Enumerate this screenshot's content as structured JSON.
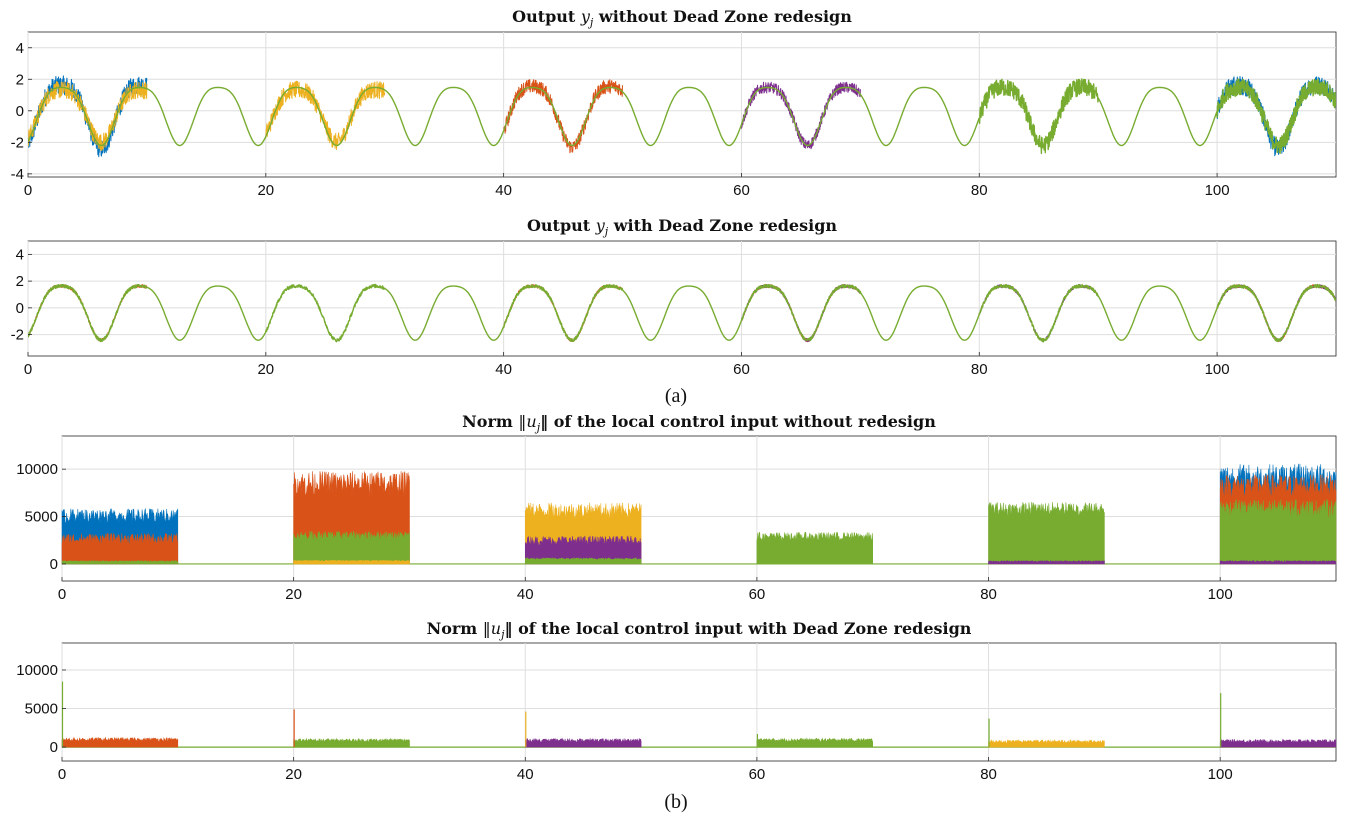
{
  "figure": {
    "panel_labels": [
      "(a)",
      "(b)"
    ]
  },
  "colors": {
    "blue": "#0072BD",
    "orange": "#D95319",
    "yellow": "#EDB120",
    "purple": "#7E2F8E",
    "green": "#77AC30"
  },
  "chart_data": [
    {
      "type": "line",
      "title_parts": [
        "Output ",
        "y",
        "j",
        " without Dead Zone redesign"
      ],
      "xlim": [
        0,
        110
      ],
      "ylim": [
        -4.2,
        5
      ],
      "xticks": [
        0,
        20,
        40,
        60,
        80,
        100
      ],
      "yticks": [
        -4,
        -2,
        0,
        2,
        4
      ],
      "grid": true,
      "series": [
        {
          "color": "blue",
          "windows": [
            [
              0,
              10
            ],
            [
              100,
              110
            ]
          ],
          "amplitude": 2.2,
          "noise": 0.6
        },
        {
          "color": "yellow",
          "windows": [
            [
              0,
              10
            ],
            [
              20,
              30
            ]
          ],
          "amplitude": 1.8,
          "noise": 0.55
        },
        {
          "color": "orange",
          "windows": [
            [
              40,
              50
            ]
          ],
          "amplitude": 2.1,
          "noise": 0.45
        },
        {
          "color": "purple",
          "windows": [
            [
              60,
              70
            ]
          ],
          "amplitude": 2.0,
          "noise": 0.35
        },
        {
          "color": "green",
          "windows": [
            [
              0,
              110
            ]
          ],
          "amplitude": 2.0,
          "noise": 0.0,
          "noisy_windows": [
            [
              80,
              90
            ],
            [
              100,
              110
            ]
          ],
          "noisy_amount": 0.55
        }
      ]
    },
    {
      "type": "line",
      "title_parts": [
        "Output ",
        "y",
        "j",
        " with Dead Zone redesign"
      ],
      "xlim": [
        0,
        110
      ],
      "ylim": [
        -3.6,
        5
      ],
      "xticks": [
        0,
        20,
        40,
        60,
        80,
        100
      ],
      "yticks": [
        -2,
        0,
        2,
        4
      ],
      "grid": true,
      "series": [
        {
          "color": "orange",
          "windows": [
            [
              0,
              10
            ],
            [
              40,
              50
            ],
            [
              60,
              70
            ],
            [
              100,
              110
            ]
          ],
          "amplitude": 2.2,
          "noise": 0.12
        },
        {
          "color": "purple",
          "windows": [
            [
              60,
              70
            ],
            [
              80,
              90
            ],
            [
              100,
              110
            ]
          ],
          "amplitude": 2.2,
          "noise": 0.12
        },
        {
          "color": "green",
          "windows": [
            [
              0,
              110
            ]
          ],
          "amplitude": 2.2,
          "noise": 0.0,
          "noisy_windows": [
            [
              0,
              10
            ],
            [
              20,
              30
            ],
            [
              40,
              50
            ],
            [
              60,
              70
            ],
            [
              80,
              90
            ],
            [
              100,
              110
            ]
          ],
          "noisy_amount": 0.12
        }
      ]
    },
    {
      "type": "area",
      "title_parts": [
        "Norm ",
        "‖u",
        "j",
        "‖ of the local control input without redesign"
      ],
      "xlim": [
        0,
        110
      ],
      "ylim": [
        -1800,
        13500
      ],
      "xticks": [
        0,
        20,
        40,
        60,
        80,
        100
      ],
      "yticks": [
        0,
        5000,
        10000
      ],
      "grid": true,
      "bursts": [
        {
          "window": [
            0,
            10
          ],
          "layers": [
            {
              "color": "blue",
              "base": 4800,
              "spread": 1600
            },
            {
              "color": "orange",
              "base": 2400,
              "spread": 1300
            },
            {
              "color": "green",
              "base": 250,
              "spread": 150
            }
          ]
        },
        {
          "window": [
            20,
            30
          ],
          "layers": [
            {
              "color": "orange",
              "base": 8000,
              "spread": 2800
            },
            {
              "color": "green",
              "base": 2800,
              "spread": 1000
            },
            {
              "color": "yellow",
              "base": 300,
              "spread": 150
            }
          ]
        },
        {
          "window": [
            40,
            50
          ],
          "layers": [
            {
              "color": "yellow",
              "base": 5300,
              "spread": 1800
            },
            {
              "color": "purple",
              "base": 2300,
              "spread": 1000
            },
            {
              "color": "green",
              "base": 500,
              "spread": 200
            }
          ]
        },
        {
          "window": [
            60,
            70
          ],
          "layers": [
            {
              "color": "green",
              "base": 2700,
              "spread": 1000
            }
          ]
        },
        {
          "window": [
            80,
            90
          ],
          "layers": [
            {
              "color": "green",
              "base": 5500,
              "spread": 1600
            },
            {
              "color": "purple",
              "base": 250,
              "spread": 150
            }
          ]
        },
        {
          "window": [
            100,
            110
          ],
          "layers": [
            {
              "color": "blue",
              "base": 8500,
              "spread": 3200
            },
            {
              "color": "orange",
              "base": 7800,
              "spread": 2500
            },
            {
              "color": "green",
              "base": 5500,
              "spread": 2000
            },
            {
              "color": "purple",
              "base": 250,
              "spread": 150
            }
          ]
        }
      ]
    },
    {
      "type": "area",
      "title_parts": [
        "Norm ",
        "‖u",
        "j",
        "‖ of the local control input with Dead Zone redesign"
      ],
      "xlim": [
        0,
        110
      ],
      "ylim": [
        -1800,
        13500
      ],
      "xticks": [
        0,
        20,
        40,
        60,
        80,
        100
      ],
      "yticks": [
        0,
        5000,
        10000
      ],
      "grid": true,
      "spikes": [
        [
          0,
          8500,
          "green"
        ],
        [
          20,
          4900,
          "orange"
        ],
        [
          40,
          4600,
          "yellow"
        ],
        [
          60,
          1700,
          "green"
        ],
        [
          80,
          3700,
          "green"
        ],
        [
          100,
          7000,
          "green"
        ]
      ],
      "bursts": [
        {
          "window": [
            0,
            10
          ],
          "layers": [
            {
              "color": "orange",
              "base": 900,
              "spread": 500
            }
          ]
        },
        {
          "window": [
            20,
            30
          ],
          "layers": [
            {
              "color": "green",
              "base": 800,
              "spread": 450
            }
          ]
        },
        {
          "window": [
            40,
            50
          ],
          "layers": [
            {
              "color": "purple",
              "base": 800,
              "spread": 450
            }
          ]
        },
        {
          "window": [
            60,
            70
          ],
          "layers": [
            {
              "color": "green",
              "base": 850,
              "spread": 450
            }
          ]
        },
        {
          "window": [
            80,
            90
          ],
          "layers": [
            {
              "color": "yellow",
              "base": 650,
              "spread": 400
            }
          ]
        },
        {
          "window": [
            100,
            110
          ],
          "layers": [
            {
              "color": "purple",
              "base": 700,
              "spread": 450
            }
          ]
        }
      ]
    }
  ]
}
